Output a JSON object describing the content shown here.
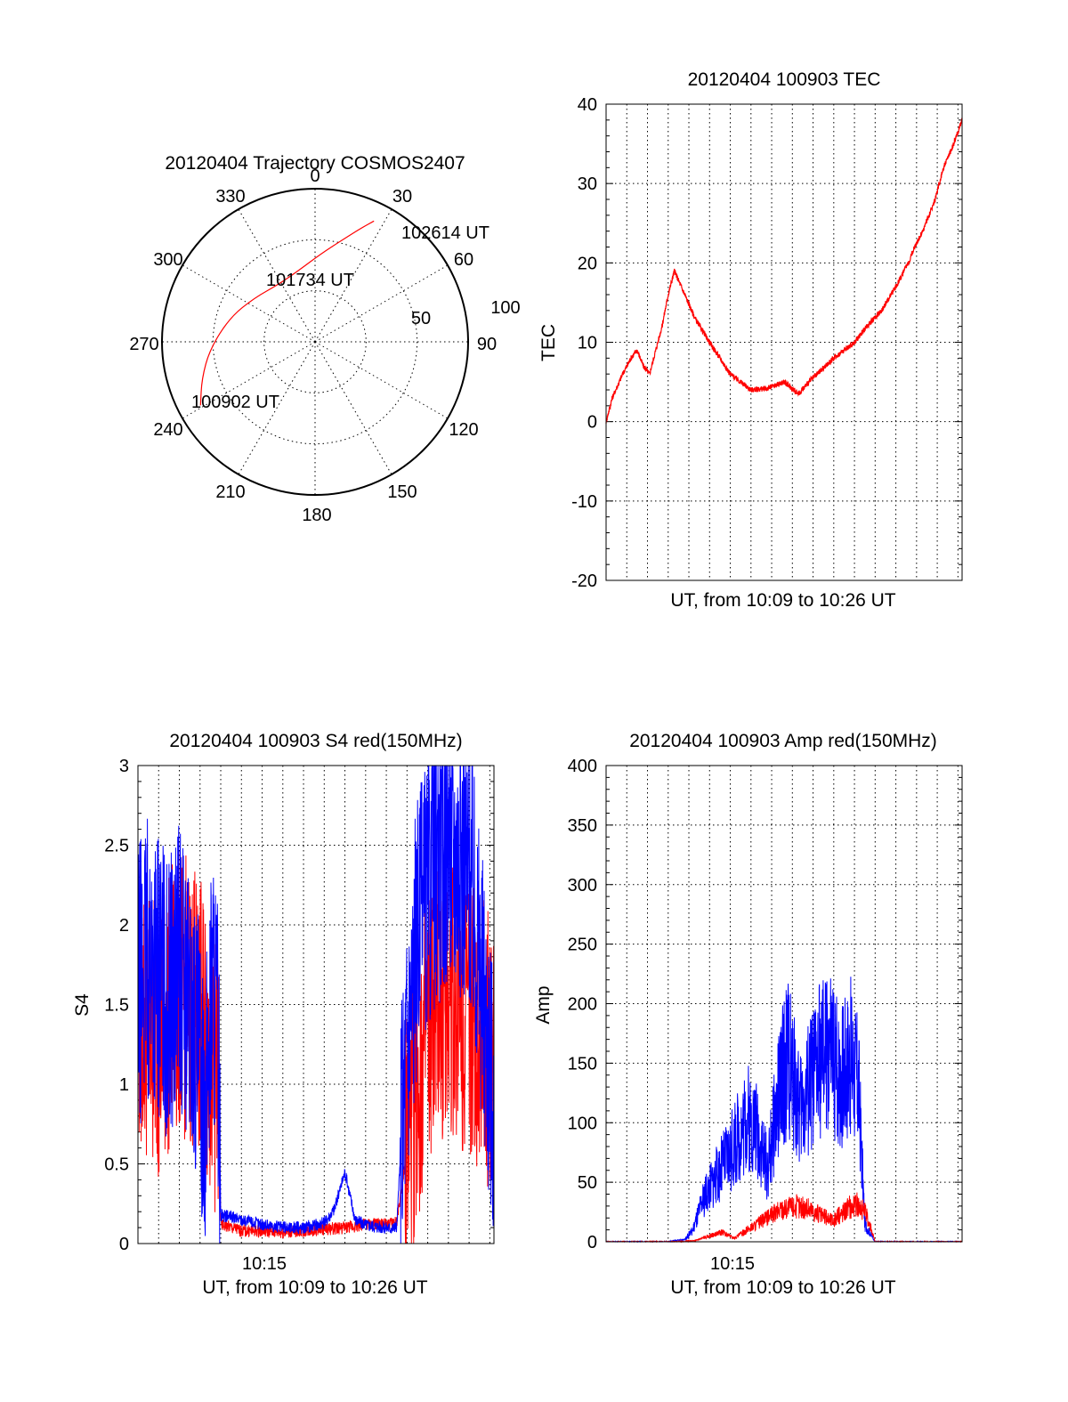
{
  "chart_data": [
    {
      "type": "polar",
      "title": "20120404 Trajectory COSMOS2407",
      "azimuth_labels": [
        "0",
        "30",
        "60",
        "90",
        "120",
        "150",
        "180",
        "210",
        "240",
        "270",
        "300",
        "330"
      ],
      "ring_labels": [
        "100",
        "50"
      ],
      "trajectory": {
        "color": "#ff0000",
        "points": [
          {
            "az": 241,
            "zenith": 77
          },
          {
            "az": 252,
            "zenith": 70
          },
          {
            "az": 266,
            "zenith": 62
          },
          {
            "az": 286,
            "zenith": 52
          },
          {
            "az": 306,
            "zenith": 44
          },
          {
            "az": 327,
            "zenith": 40
          },
          {
            "az": 347,
            "zenith": 43
          },
          {
            "az": 4,
            "zenith": 52
          },
          {
            "az": 15,
            "zenith": 62
          },
          {
            "az": 22,
            "zenith": 72
          },
          {
            "az": 26,
            "zenith": 79
          }
        ]
      },
      "annotations": [
        "102614 UT",
        "101734 UT",
        "100902 UT"
      ]
    },
    {
      "type": "line",
      "title": "20120404 100903 TEC",
      "xlabel": "UT, from 10:09 to 10:26 UT",
      "ylabel": "TEC",
      "xlim": [
        0,
        17.2
      ],
      "ylim": [
        -20,
        40
      ],
      "yticks": [
        "-20",
        "-10",
        "0",
        "10",
        "20",
        "30",
        "40"
      ],
      "grid": true,
      "series": [
        {
          "color": "#ff0000",
          "x": [
            0,
            0.3,
            0.8,
            1.2,
            1.5,
            1.8,
            2.1,
            2.4,
            2.7,
            3.0,
            3.3,
            3.8,
            4.3,
            5.0,
            6.0,
            7.0,
            7.8,
            8.6,
            9.3,
            9.8,
            10.2,
            11.0,
            12.0,
            12.6,
            13.3,
            14.0,
            14.6,
            14.9,
            15.3,
            15.9,
            16.3,
            16.8,
            17.2
          ],
          "y": [
            0,
            3,
            6,
            8,
            9,
            7,
            6,
            9,
            12,
            16,
            19,
            16,
            13,
            10,
            6,
            4,
            4.2,
            5,
            3.5,
            5,
            6,
            8,
            10,
            12,
            14,
            17,
            20,
            22,
            24,
            28,
            32,
            35,
            38
          ]
        }
      ]
    },
    {
      "type": "line",
      "title": "20120404 100903 S4 red(150MHz)",
      "xlabel": "UT, from 10:09 to 10:26 UT",
      "ylabel": "S4",
      "xticklabels": [
        "10:15"
      ],
      "xlim": [
        0,
        17.2
      ],
      "ylim": [
        0,
        3
      ],
      "yticks": [
        "0",
        "0.5",
        "1",
        "1.5",
        "2",
        "2.5",
        "3"
      ],
      "grid": true,
      "series": [
        {
          "color": "#ff0000",
          "x": [
            0,
            1,
            2,
            3,
            3.5,
            3.9,
            4.0,
            5,
            6,
            7,
            8,
            9,
            10,
            11,
            12,
            12.5,
            13,
            13.5,
            14,
            15,
            16,
            17.2
          ],
          "y": [
            1.5,
            1.3,
            1.6,
            1.4,
            1.2,
            1.0,
            0.12,
            0.08,
            0.08,
            0.07,
            0.08,
            0.09,
            0.1,
            0.12,
            0.12,
            0.13,
            0.6,
            1.0,
            1.3,
            1.6,
            1.4,
            1.2
          ]
        },
        {
          "color": "#0000ff",
          "x": [
            0,
            0.5,
            1,
            1.5,
            2,
            2.5,
            3,
            3.3,
            3.6,
            3.9,
            4.0,
            5,
            6,
            7,
            8,
            9,
            9.5,
            10,
            10.5,
            11,
            12,
            12.5,
            13,
            13.5,
            14,
            15,
            16,
            16.5,
            17.2
          ],
          "y": [
            1.6,
            1.8,
            1.7,
            1.5,
            1.8,
            1.4,
            1.1,
            0.9,
            1.7,
            1.2,
            0.18,
            0.15,
            0.12,
            0.1,
            0.1,
            0.13,
            0.22,
            0.45,
            0.15,
            0.12,
            0.1,
            0.1,
            1.3,
            1.9,
            2.2,
            2.5,
            2.4,
            1.8,
            0.9
          ]
        }
      ]
    },
    {
      "type": "line",
      "title": "20120404 100903 Amp red(150MHz)",
      "xlabel": "UT, from 10:09 to 10:26 UT",
      "ylabel": "Amp",
      "xticklabels": [
        "10:15"
      ],
      "xlim": [
        0,
        17.2
      ],
      "ylim": [
        0,
        400
      ],
      "yticks": [
        "0",
        "50",
        "100",
        "150",
        "200",
        "250",
        "300",
        "350",
        "400"
      ],
      "grid": true,
      "series": [
        {
          "color": "#0000ff",
          "x": [
            0,
            3,
            3.8,
            4.2,
            4.8,
            5.5,
            6.2,
            6.8,
            7.3,
            7.8,
            8.3,
            8.8,
            9.3,
            9.8,
            10.3,
            10.8,
            11.3,
            11.8,
            12.2,
            12.5,
            13,
            14,
            15,
            17.2
          ],
          "y": [
            0,
            0,
            2,
            10,
            40,
            60,
            80,
            105,
            95,
            60,
            120,
            160,
            110,
            130,
            150,
            160,
            140,
            155,
            130,
            15,
            0,
            0,
            0,
            0
          ]
        },
        {
          "color": "#ff0000",
          "x": [
            0,
            3.5,
            4.3,
            5,
            5.6,
            6.2,
            7.0,
            7.8,
            8.5,
            9.2,
            9.8,
            10.4,
            11,
            11.6,
            12.2,
            12.6,
            13,
            17.2
          ],
          "y": [
            0,
            0,
            1,
            5,
            8,
            3,
            12,
            20,
            28,
            30,
            28,
            22,
            18,
            28,
            32,
            22,
            0,
            0
          ]
        }
      ]
    }
  ]
}
